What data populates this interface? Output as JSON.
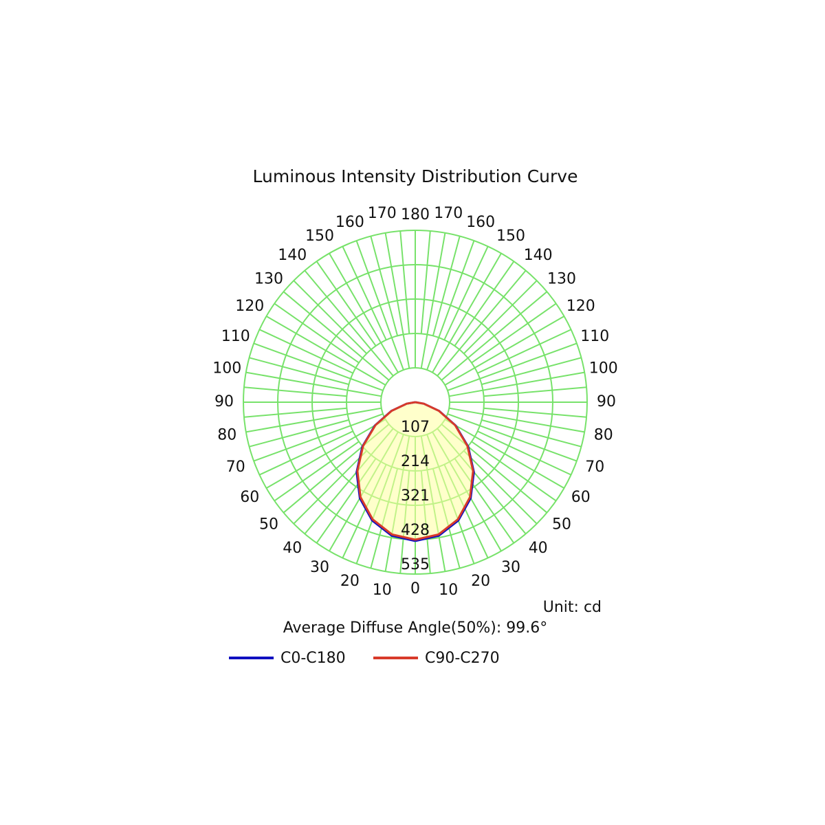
{
  "chart_data": {
    "type": "polar",
    "title": "Luminous Intensity Distribution Curve",
    "unit_label": "Unit: cd",
    "annotation": "Average Diffuse Angle(50%): 99.6°",
    "x": [
      0,
      10,
      20,
      30,
      40,
      50,
      60,
      70,
      80,
      90
    ],
    "xticks": [
      0,
      10,
      20,
      30,
      40,
      50,
      60,
      70,
      80,
      90,
      100,
      110,
      120,
      130,
      140,
      150,
      160,
      170,
      180
    ],
    "ylim": [
      0,
      535
    ],
    "yticks": [
      107,
      214,
      321,
      428,
      535
    ],
    "grid": true,
    "series": [
      {
        "name": "C0-C180",
        "color": "#1010c0",
        "values": [
          432,
          422,
          392,
          345,
          284,
          215,
          145,
          79,
          27,
          0
        ]
      },
      {
        "name": "C90-C270",
        "color": "#d83a2a",
        "values": [
          428,
          418,
          388,
          341,
          280,
          212,
          143,
          78,
          27,
          0
        ]
      }
    ]
  }
}
